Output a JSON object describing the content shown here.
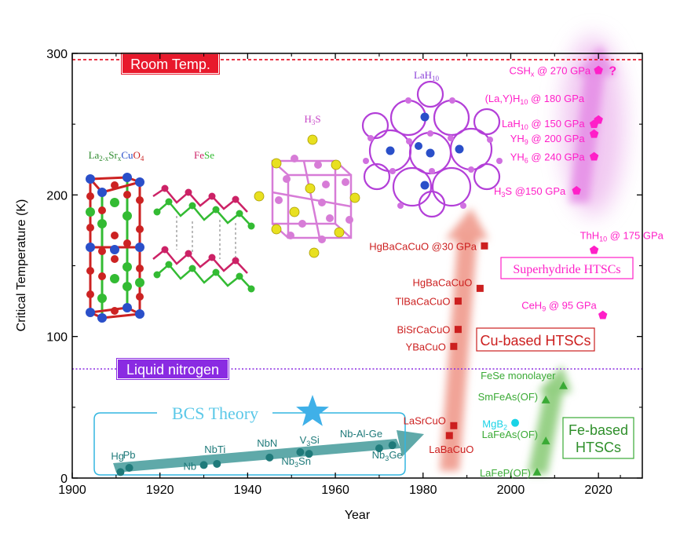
{
  "chart_data": {
    "type": "scatter",
    "xlabel": "Year",
    "ylabel": "Critical Temperature (K)",
    "xlim": [
      1900,
      2030
    ],
    "ylim": [
      0,
      300
    ],
    "xticks": [
      1900,
      1920,
      1940,
      1960,
      1980,
      2000,
      2020
    ],
    "yticks": [
      0,
      100,
      200,
      300
    ],
    "reference_lines": [
      {
        "name": "Room Temp.",
        "y": 293,
        "color": "#e8192c"
      },
      {
        "name": "Liquid nitrogen",
        "y": 77,
        "color": "#8a2be2"
      }
    ],
    "series": [
      {
        "name": "BCS Theory",
        "color": "#1f7a7a",
        "marker": "circle",
        "points": [
          {
            "label": "Hg",
            "x": 1911,
            "y": 4.2
          },
          {
            "label": "Pb",
            "x": 1913,
            "y": 7.2
          },
          {
            "label": "Nb",
            "x": 1930,
            "y": 9.2
          },
          {
            "label": "NbTi",
            "x": 1933,
            "y": 10
          },
          {
            "label": "NbN",
            "x": 1945,
            "y": 14.5
          },
          {
            "label": "V3Si",
            "x": 1954,
            "y": 17.1
          },
          {
            "label": "Nb3Sn",
            "x": 1952,
            "y": 18.3
          },
          {
            "label": "Nb-Al-Ge",
            "x": 1970,
            "y": 21
          },
          {
            "label": "Nb3Ge",
            "x": 1973,
            "y": 23.2
          }
        ]
      },
      {
        "name": "Cu-based HTSCs",
        "color": "#cc1f1f",
        "marker": "square",
        "points": [
          {
            "label": "LaBaCuO",
            "x": 1986,
            "y": 30
          },
          {
            "label": "LaSrCuO",
            "x": 1987,
            "y": 37
          },
          {
            "label": "YBaCuO",
            "x": 1987,
            "y": 93
          },
          {
            "label": "BiSrCaCuO",
            "x": 1988,
            "y": 105
          },
          {
            "label": "TlBaCaCuO",
            "x": 1988,
            "y": 125
          },
          {
            "label": "HgBaCaCuO",
            "x": 1993,
            "y": 134
          },
          {
            "label": "HgBaCaCuO @30 GPa",
            "x": 1994,
            "y": 164
          }
        ]
      },
      {
        "name": "Fe-based HTSCs",
        "color": "#3aaa35",
        "marker": "triangle",
        "points": [
          {
            "label": "LaFeP(OF)",
            "x": 2006,
            "y": 4
          },
          {
            "label": "LaFeAs(OF)",
            "x": 2008,
            "y": 26
          },
          {
            "label": "SmFeAs(OF)",
            "x": 2008,
            "y": 55
          },
          {
            "label": "FeSe monolayer",
            "x": 2012,
            "y": 65
          }
        ]
      },
      {
        "name": "MgB2",
        "color": "#19d3e6",
        "marker": "circle",
        "points": [
          {
            "label": "MgB2",
            "x": 2001,
            "y": 39
          }
        ]
      },
      {
        "name": "Superhydride HTSCs",
        "color": "#ff1fc8",
        "marker": "pentagon",
        "points": [
          {
            "label": "CeH9 @ 95 GPa",
            "x": 2021,
            "y": 115
          },
          {
            "label": "ThH10 @ 175 GPa",
            "x": 2019,
            "y": 161
          },
          {
            "label": "H3S @150 GPa",
            "x": 2015,
            "y": 203
          },
          {
            "label": "YH6 @ 240 GPa",
            "x": 2019,
            "y": 227
          },
          {
            "label": "YH9 @ 200 GPa",
            "x": 2019,
            "y": 243
          },
          {
            "label": "LaH10 @ 150 GPa",
            "x": 2019,
            "y": 250
          },
          {
            "label": "(La,Y)H10 @ 180 GPa",
            "x": 2020,
            "y": 253
          },
          {
            "label": "CSHx @ 270 GPa",
            "x": 2020,
            "y": 288
          }
        ]
      }
    ],
    "annotations": [
      {
        "text": "?",
        "color": "#ff1fc8"
      },
      {
        "text": "BCS Theory",
        "color": "#5bc8e8"
      },
      {
        "text": "Cu-based HTSCs",
        "color": "#cc1f1f"
      },
      {
        "text": "Fe-based HTSCs",
        "color": "#3aaa35"
      },
      {
        "text": "Superhydride HTSCs",
        "color": "#ff1fc8"
      }
    ],
    "structure_labels": [
      {
        "text": "La2-xSrxCuO4"
      },
      {
        "text": "FeSe"
      },
      {
        "text": "H3S"
      },
      {
        "text": "LaH10"
      }
    ]
  }
}
